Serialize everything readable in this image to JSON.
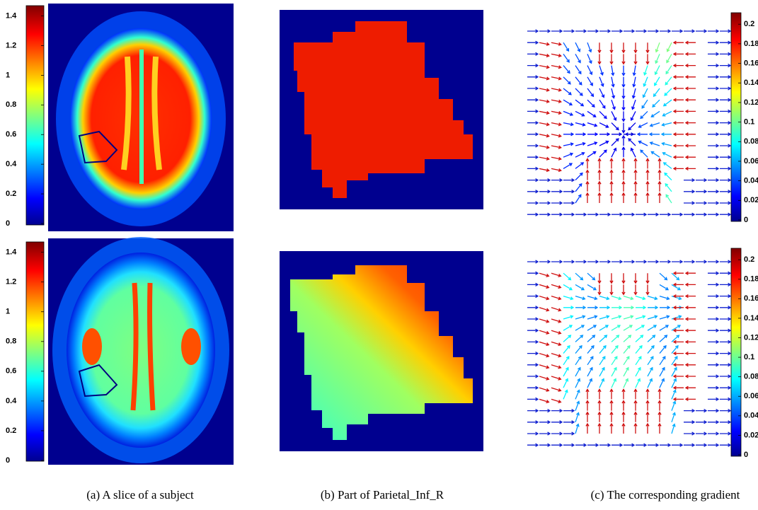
{
  "panels": [
    {
      "caption": "(a) A slice of a subject",
      "colorbar_lim": [
        0,
        1.46
      ],
      "colorbar_ticks": [
        0,
        0.2,
        0.4,
        0.6,
        0.8,
        1,
        1.2,
        1.4
      ]
    },
    {
      "caption": "(b) Part of Parietal_Inf_R"
    },
    {
      "caption": "(c) The corresponding gradient",
      "colorbar_lim": [
        0,
        0.211
      ],
      "colorbar_ticks": [
        0,
        0.02,
        0.04,
        0.06,
        0.08,
        0.1,
        0.12,
        0.14,
        0.16,
        0.18,
        0.2
      ]
    }
  ]
}
